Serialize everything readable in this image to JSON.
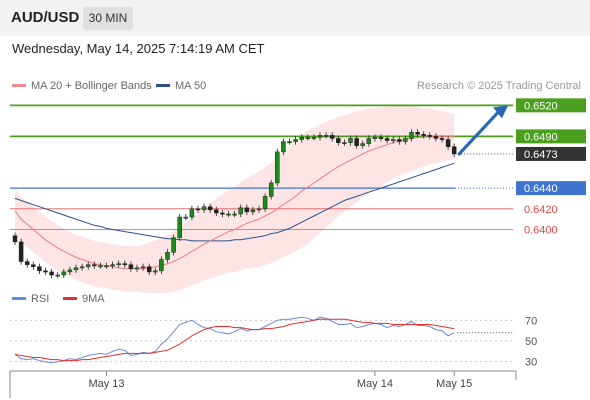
{
  "header": {
    "symbol": "AUD/USD",
    "timeframe": "30 MIN"
  },
  "datetime": "Wednesday, May 14, 2025 7:14:19 AM CET",
  "legend": {
    "ma20_label": "MA 20 + Bollinger Bands",
    "ma50_label": "MA 50"
  },
  "credit": "Research © 2025 Trading Central",
  "rsi_legend": {
    "rsi_label": "RSI",
    "ma_label": "9MA"
  },
  "colors": {
    "ma20": "#ef7b7b",
    "ma50": "#2e4f8f",
    "bollinger": "#fddcdc",
    "green": "#4b9e1e",
    "blue": "#3f75d1",
    "red": "#e35b5b",
    "arrow": "#2767b3",
    "rsi": "#6a89e0",
    "rsi_ma": "#e03030"
  },
  "chart_data": [
    {
      "type": "candlestick",
      "title": "AUD/USD",
      "timeframe": "30 MIN",
      "ylim": [
        0.6385,
        0.653
      ],
      "x_ticks": [
        "May 13",
        "May 14",
        "May 15"
      ],
      "levels": [
        {
          "value": 0.652,
          "label": "0.6520",
          "style": "resistance-target",
          "color": "#4b9e1e"
        },
        {
          "value": 0.649,
          "label": "0.6490",
          "style": "resistance",
          "color": "#4b9e1e"
        },
        {
          "value": 0.6473,
          "label": "0.6473",
          "style": "last-price",
          "color": "#333333"
        },
        {
          "value": 0.644,
          "label": "0.6440",
          "style": "pivot",
          "color": "#3f75d1"
        },
        {
          "value": 0.642,
          "label": "0.6420",
          "style": "support",
          "color": "#e35b5b"
        },
        {
          "value": 0.64,
          "label": "0.6400",
          "style": "support",
          "color": "#e35b5b"
        }
      ],
      "arrow": {
        "from": 0.6473,
        "to": 0.652,
        "direction": "up"
      },
      "close": [
        0.6388,
        0.6369,
        0.6366,
        0.6364,
        0.636,
        0.6359,
        0.6356,
        0.6356,
        0.6359,
        0.6361,
        0.6363,
        0.6364,
        0.6366,
        0.6365,
        0.6365,
        0.6365,
        0.6366,
        0.6367,
        0.6366,
        0.6362,
        0.6363,
        0.6364,
        0.6359,
        0.636,
        0.6371,
        0.6378,
        0.6392,
        0.6412,
        0.6412,
        0.642,
        0.6419,
        0.6422,
        0.6419,
        0.6416,
        0.6415,
        0.6415,
        0.6415,
        0.6421,
        0.6417,
        0.6419,
        0.642,
        0.6432,
        0.6445,
        0.6475,
        0.6485,
        0.6485,
        0.6487,
        0.6489,
        0.6489,
        0.6489,
        0.6491,
        0.6491,
        0.6488,
        0.6484,
        0.6484,
        0.6488,
        0.6481,
        0.6483,
        0.6488,
        0.6489,
        0.6488,
        0.6486,
        0.6487,
        0.6485,
        0.6488,
        0.6494,
        0.6492,
        0.6491,
        0.649,
        0.6488,
        0.6487,
        0.648,
        0.6473
      ],
      "ma20": [
        0.6418,
        0.641,
        0.6405,
        0.64,
        0.6395,
        0.639,
        0.6386,
        0.6382,
        0.6379,
        0.6376,
        0.6373,
        0.6371,
        0.6369,
        0.6367,
        0.6366,
        0.6365,
        0.6364,
        0.6363,
        0.6362,
        0.6362,
        0.6362,
        0.6362,
        0.6363,
        0.6364,
        0.6365,
        0.6367,
        0.6369,
        0.6372,
        0.6375,
        0.6379,
        0.6382,
        0.6386,
        0.6389,
        0.6392,
        0.6395,
        0.6398,
        0.64,
        0.6403,
        0.6406,
        0.6408,
        0.641,
        0.6413,
        0.6416,
        0.642,
        0.6424,
        0.6428,
        0.6432,
        0.6437,
        0.6441,
        0.6445,
        0.6449,
        0.6453,
        0.6457,
        0.6461,
        0.6464,
        0.6467,
        0.647,
        0.6473,
        0.6476,
        0.6478,
        0.648,
        0.6482,
        0.6484,
        0.6486,
        0.6487,
        0.6488,
        0.6489,
        0.6489,
        0.649,
        0.649,
        0.649,
        0.649,
        0.649
      ],
      "ma50": [
        0.643,
        0.6428,
        0.6426,
        0.6424,
        0.6422,
        0.642,
        0.6418,
        0.6416,
        0.6414,
        0.6412,
        0.641,
        0.6408,
        0.6406,
        0.6404,
        0.6403,
        0.6401,
        0.64,
        0.6399,
        0.6398,
        0.6397,
        0.6396,
        0.6395,
        0.6394,
        0.6393,
        0.6392,
        0.6391,
        0.6391,
        0.639,
        0.639,
        0.6389,
        0.6389,
        0.6389,
        0.6389,
        0.6389,
        0.6389,
        0.6389,
        0.639,
        0.639,
        0.6391,
        0.6392,
        0.6393,
        0.6394,
        0.6396,
        0.6397,
        0.6399,
        0.6401,
        0.6404,
        0.6407,
        0.641,
        0.6413,
        0.6416,
        0.6419,
        0.6422,
        0.6425,
        0.6428,
        0.643,
        0.6432,
        0.6434,
        0.6436,
        0.6438,
        0.644,
        0.6442,
        0.6444,
        0.6446,
        0.6448,
        0.645,
        0.6452,
        0.6454,
        0.6456,
        0.6458,
        0.646,
        0.6462,
        0.6464
      ]
    },
    {
      "type": "line",
      "title": "RSI",
      "ylim": [
        20,
        80
      ],
      "y_ticks": [
        70,
        50,
        30
      ],
      "series": [
        {
          "name": "RSI",
          "values": [
            37,
            33,
            32,
            33,
            31,
            30,
            29,
            30,
            31,
            33,
            32,
            34,
            36,
            37,
            38,
            37,
            40,
            42,
            41,
            36,
            37,
            39,
            38,
            40,
            47,
            52,
            59,
            66,
            68,
            70,
            66,
            63,
            62,
            59,
            58,
            57,
            59,
            62,
            60,
            61,
            61,
            64,
            67,
            70,
            71,
            71,
            72,
            73,
            72,
            70,
            73,
            72,
            69,
            66,
            66,
            67,
            63,
            64,
            66,
            67,
            66,
            63,
            65,
            64,
            66,
            69,
            65,
            65,
            64,
            61,
            60,
            55,
            58
          ]
        },
        {
          "name": "9MA",
          "values": [
            37,
            36,
            35,
            34,
            34,
            33,
            32,
            32,
            31,
            31,
            31,
            32,
            32,
            33,
            34,
            35,
            36,
            37,
            38,
            38,
            38,
            38,
            38,
            39,
            40,
            41,
            44,
            47,
            51,
            55,
            58,
            61,
            63,
            64,
            64,
            64,
            63,
            63,
            62,
            61,
            61,
            62,
            62,
            63,
            64,
            66,
            67,
            68,
            69,
            70,
            71,
            71,
            71,
            71,
            71,
            70,
            69,
            68,
            68,
            67,
            67,
            67,
            66,
            66,
            66,
            66,
            66,
            66,
            66,
            65,
            64,
            63,
            62
          ]
        }
      ]
    }
  ]
}
